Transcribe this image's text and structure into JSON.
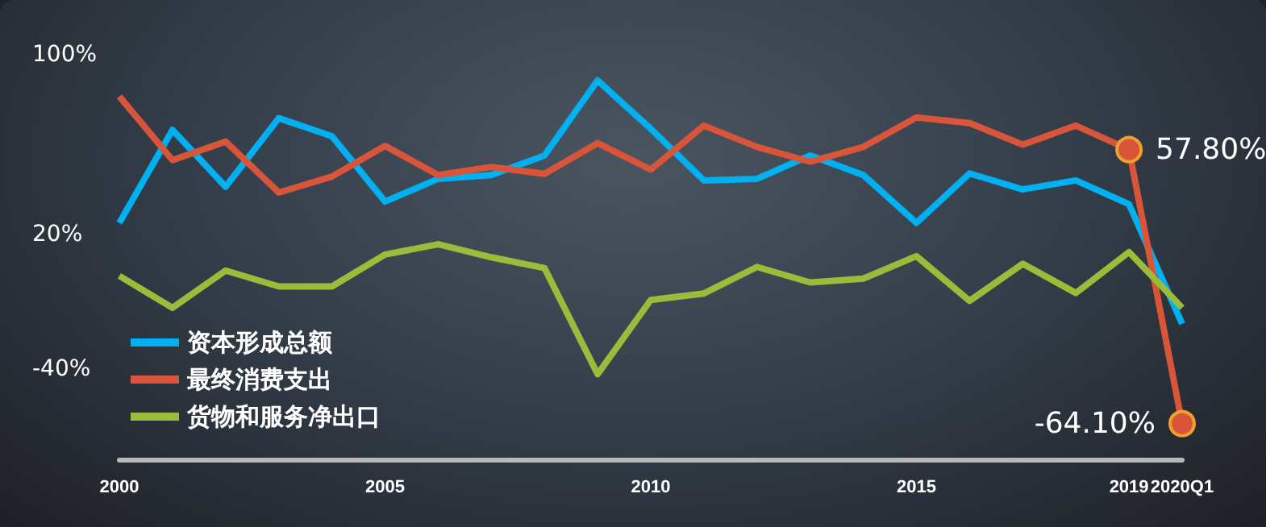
{
  "chart_data": {
    "type": "line",
    "categories": [
      "2000",
      null,
      null,
      null,
      null,
      "2005",
      null,
      null,
      null,
      null,
      "2010",
      null,
      null,
      null,
      null,
      "2015",
      null,
      null,
      null,
      "2019",
      "2020Q1"
    ],
    "series": [
      {
        "name": "资本形成总额",
        "color": "#00b0f0",
        "values": [
          25.2,
          66.6,
          41.3,
          71.8,
          63.8,
          34.7,
          44.8,
          46.5,
          55.2,
          88.6,
          67.1,
          44.1,
          44.8,
          55.2,
          46.5,
          25.2,
          47.2,
          40.1,
          44.1,
          33.5,
          -19.7
        ]
      },
      {
        "name": "最终消费支出",
        "color": "#d9553a",
        "values": [
          81.5,
          53.1,
          61.4,
          38.7,
          45.8,
          59.5,
          46.5,
          50.1,
          47.0,
          60.7,
          48.9,
          68.5,
          59.0,
          52.4,
          59.0,
          72.1,
          69.6,
          60.0,
          68.5,
          57.8,
          -64.1
        ],
        "value_labels": [
          null,
          null,
          null,
          null,
          null,
          null,
          null,
          null,
          null,
          null,
          null,
          null,
          null,
          null,
          null,
          null,
          null,
          null,
          null,
          "57.80%",
          "-64.10%"
        ]
      },
      {
        "name": "货物和服务净出口",
        "color": "#9bbb3b",
        "values": [
          1.6,
          -12.6,
          4.0,
          -3.1,
          -3.1,
          11.1,
          15.7,
          9.9,
          5.1,
          -42.1,
          -9.1,
          -6.2,
          5.6,
          -1.3,
          0.4,
          10.4,
          -9.5,
          7.0,
          -6.0,
          12.2,
          -12.6
        ]
      }
    ],
    "ylim": [
      -80,
      100
    ],
    "yticks": [
      {
        "value": 100,
        "label": "100%"
      },
      {
        "value": 20,
        "label": "20%"
      },
      {
        "value": -40,
        "label": "-40%"
      }
    ],
    "grid": false,
    "legend": "bottom left",
    "line_style": "solid"
  }
}
